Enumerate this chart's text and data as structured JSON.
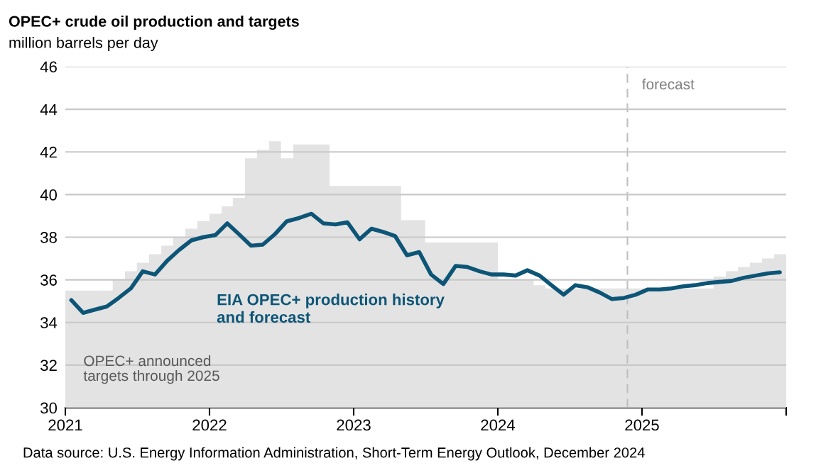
{
  "chart_data": {
    "type": "line",
    "title": "OPEC+ crude oil production and targets",
    "subtitle": "million barrels per day",
    "xlim": [
      "2021",
      "2026"
    ],
    "xticks": [
      {
        "value": "2021",
        "label": "2021"
      },
      {
        "value": "2022",
        "label": "2022"
      },
      {
        "value": "2023",
        "label": "2023"
      },
      {
        "value": "2024",
        "label": "2024"
      },
      {
        "value": "2025",
        "label": "2025"
      },
      {
        "value": "2026",
        "label": null
      }
    ],
    "ylim": [
      30,
      46
    ],
    "yticks": [
      30,
      32,
      34,
      36,
      38,
      40,
      42,
      44,
      46
    ],
    "grid": "y",
    "legend": false,
    "marker": "none",
    "line_style": "solid",
    "series": [
      {
        "name": "OPEC+ announced targets through 2025",
        "type": "area",
        "color": "#e3e3e3",
        "x": [
          "2021-01",
          "2021-02",
          "2021-03",
          "2021-04",
          "2021-05",
          "2021-06",
          "2021-07",
          "2021-08",
          "2021-09",
          "2021-10",
          "2021-11",
          "2021-12",
          "2022-01",
          "2022-02",
          "2022-03",
          "2022-04",
          "2022-05",
          "2022-06",
          "2022-07",
          "2022-08",
          "2022-09",
          "2022-10",
          "2022-11",
          "2022-12",
          "2023-01",
          "2023-02",
          "2023-03",
          "2023-04",
          "2023-05",
          "2023-06",
          "2023-07",
          "2023-08",
          "2023-09",
          "2023-10",
          "2023-11",
          "2023-12",
          "2024-01",
          "2024-02",
          "2024-03",
          "2024-04",
          "2024-05",
          "2024-06",
          "2024-07",
          "2024-08",
          "2024-09",
          "2024-10",
          "2024-11",
          "2024-12",
          "2025-01",
          "2025-02",
          "2025-03",
          "2025-04",
          "2025-05",
          "2025-06",
          "2025-07",
          "2025-08",
          "2025-09",
          "2025-10",
          "2025-11",
          "2025-12",
          "2026-01"
        ],
        "values": [
          35.5,
          35.5,
          35.5,
          35.5,
          36.0,
          36.4,
          36.8,
          37.2,
          37.6,
          38.0,
          38.4,
          38.75,
          39.1,
          39.45,
          39.85,
          41.7,
          42.1,
          42.5,
          41.7,
          42.35,
          42.35,
          42.35,
          40.4,
          40.4,
          40.4,
          40.4,
          40.4,
          40.4,
          38.8,
          38.8,
          37.75,
          37.75,
          37.75,
          37.75,
          37.75,
          37.75,
          36.0,
          36.0,
          36.0,
          35.75,
          35.6,
          35.6,
          35.6,
          35.6,
          35.6,
          35.6,
          35.6,
          35.6,
          35.6,
          35.6,
          35.6,
          35.6,
          35.6,
          35.6,
          36.15,
          36.4,
          36.6,
          36.8,
          37.0,
          37.2,
          37.2
        ]
      },
      {
        "name": "EIA OPEC+ production history and forecast",
        "color": "#0d5577",
        "x": [
          "2021-01-16",
          "2021-02-15",
          "2021-03-16",
          "2021-04-16",
          "2021-05-16",
          "2021-06-16",
          "2021-07-16",
          "2021-08-16",
          "2021-09-16",
          "2021-10-16",
          "2021-11-16",
          "2021-12-16",
          "2022-01-16",
          "2022-02-15",
          "2022-03-16",
          "2022-04-16",
          "2022-05-16",
          "2022-06-16",
          "2022-07-16",
          "2022-08-16",
          "2022-09-16",
          "2022-10-16",
          "2022-11-16",
          "2022-12-16",
          "2023-01-16",
          "2023-02-15",
          "2023-03-16",
          "2023-04-16",
          "2023-05-16",
          "2023-06-16",
          "2023-07-16",
          "2023-08-16",
          "2023-09-16",
          "2023-10-16",
          "2023-11-16",
          "2023-12-16",
          "2024-01-16",
          "2024-02-15",
          "2024-03-16",
          "2024-04-16",
          "2024-05-16",
          "2024-06-16",
          "2024-07-16",
          "2024-08-16",
          "2024-09-16",
          "2024-10-16",
          "2024-11-16",
          "2024-12-16",
          "2025-01-16",
          "2025-02-15",
          "2025-03-16",
          "2025-04-16",
          "2025-05-16",
          "2025-06-16",
          "2025-07-16",
          "2025-08-16",
          "2025-09-16",
          "2025-10-16",
          "2025-11-16",
          "2025-12-16"
        ],
        "values": [
          35.05,
          34.45,
          34.6,
          34.75,
          35.15,
          35.6,
          36.4,
          36.25,
          36.9,
          37.4,
          37.85,
          38.0,
          38.1,
          38.65,
          38.15,
          37.6,
          37.65,
          38.15,
          38.75,
          38.9,
          39.1,
          38.65,
          38.6,
          38.7,
          37.9,
          38.4,
          38.25,
          38.05,
          37.15,
          37.3,
          36.25,
          35.8,
          36.65,
          36.6,
          36.4,
          36.25,
          36.25,
          36.2,
          36.45,
          36.2,
          35.75,
          35.3,
          35.75,
          35.65,
          35.4,
          35.1,
          35.15,
          35.3,
          35.55,
          35.55,
          35.6,
          35.7,
          35.75,
          35.85,
          35.9,
          35.95,
          36.1,
          36.2,
          36.3,
          36.35
        ]
      }
    ],
    "ref_lines": [
      {
        "axis": "x",
        "value": "2024-11-25",
        "label": "forecast",
        "color": "#bfbfbf",
        "line_style": "dashed"
      }
    ],
    "annotations": [
      "Data source: U.S. Energy Information Administration, Short-Term Energy Outlook, December 2024"
    ]
  }
}
